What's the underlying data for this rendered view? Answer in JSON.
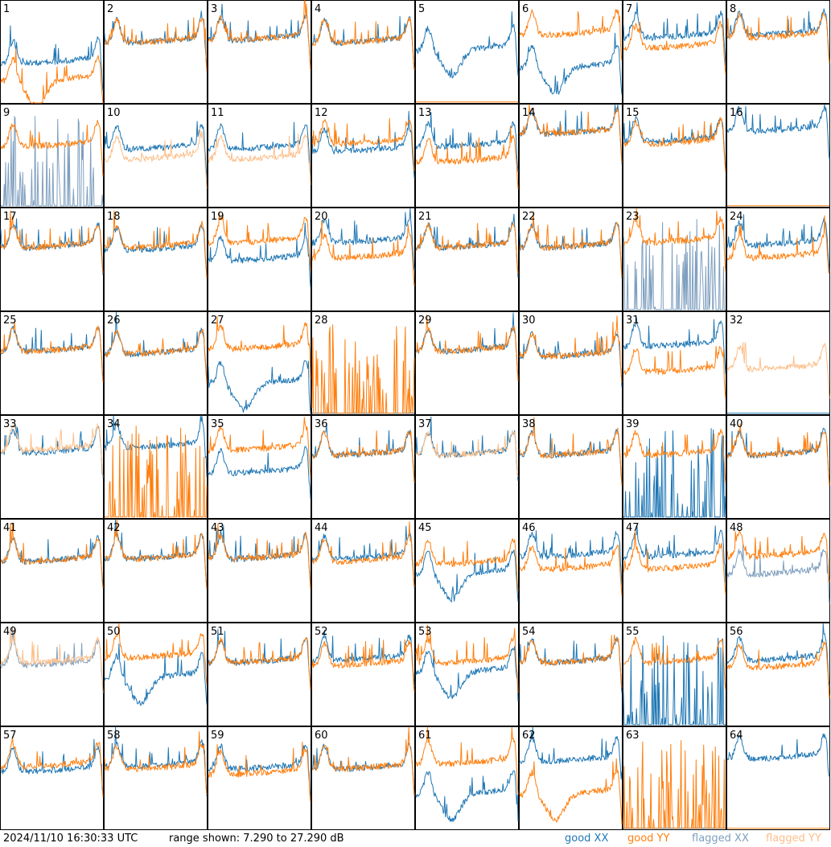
{
  "panel_labels": [
    "1",
    "2",
    "3",
    "4",
    "5",
    "6",
    "7",
    "8",
    "9",
    "10",
    "11",
    "12",
    "13",
    "14",
    "15",
    "16",
    "17",
    "18",
    "19",
    "20",
    "21",
    "22",
    "23",
    "24",
    "25",
    "26",
    "27",
    "28",
    "29",
    "30",
    "31",
    "32",
    "33",
    "34",
    "35",
    "36",
    "37",
    "38",
    "39",
    "40",
    "41",
    "42",
    "43",
    "44",
    "45",
    "46",
    "47",
    "48",
    "49",
    "50",
    "51",
    "52",
    "53",
    "54",
    "55",
    "56",
    "57",
    "58",
    "59",
    "60",
    "61",
    "62",
    "63",
    "64"
  ],
  "footer": {
    "timestamp": "2024/11/10 16:30:33 UTC",
    "range": "range shown: 7.290 to 27.290 dB"
  },
  "legend": [
    {
      "label": "good XX",
      "color": "#1f77b4"
    },
    {
      "label": "good YY",
      "color": "#ff7f0e"
    },
    {
      "label": "flagged XX",
      "color": "#7f9fbf"
    },
    {
      "label": "flagged YY",
      "color": "#fcbf8a"
    }
  ],
  "colors": {
    "good_xx": "#1f77b4",
    "good_yy": "#ff7f0e",
    "flagged_xx": "#7f9fbf",
    "flagged_yy": "#fcbf8a"
  },
  "chart_data": {
    "type": "line",
    "layout": "8x8 small multiples",
    "ylim": [
      7.29,
      27.29
    ],
    "yunit": "dB",
    "series_names": [
      "good XX",
      "good YY",
      "flagged XX",
      "flagged YY"
    ],
    "panels": [
      {
        "id": 1,
        "xx": {
          "status": "good",
          "level": 15.0,
          "shape": "normal"
        },
        "yy": {
          "status": "good",
          "level": 11.5,
          "shape": "dip"
        }
      },
      {
        "id": 2,
        "xx": {
          "status": "good",
          "level": 19.0,
          "shape": "normal"
        },
        "yy": {
          "status": "good",
          "level": 19.0,
          "shape": "normal"
        }
      },
      {
        "id": 3,
        "xx": {
          "status": "good",
          "level": 19.5,
          "shape": "normal"
        },
        "yy": {
          "status": "good",
          "level": 19.5,
          "shape": "normal"
        }
      },
      {
        "id": 4,
        "xx": {
          "status": "good",
          "level": 19.0,
          "shape": "normal"
        },
        "yy": {
          "status": "good",
          "level": 19.0,
          "shape": "normal"
        }
      },
      {
        "id": 5,
        "xx": {
          "status": "good",
          "level": 17.5,
          "shape": "dip"
        },
        "yy": {
          "status": "good",
          "level": 7.5,
          "shape": "flat"
        }
      },
      {
        "id": 6,
        "xx": {
          "status": "good",
          "level": 14.0,
          "shape": "dip"
        },
        "yy": {
          "status": "good",
          "level": 20.5,
          "shape": "normal"
        }
      },
      {
        "id": 7,
        "xx": {
          "status": "good",
          "level": 20.0,
          "shape": "normal"
        },
        "yy": {
          "status": "good",
          "level": 18.0,
          "shape": "normal"
        }
      },
      {
        "id": 8,
        "xx": {
          "status": "good",
          "level": 20.5,
          "shape": "normal"
        },
        "yy": {
          "status": "good",
          "level": 20.0,
          "shape": "normal"
        }
      },
      {
        "id": 9,
        "xx": {
          "status": "flagged",
          "level": 7.5,
          "shape": "spiky"
        },
        "yy": {
          "status": "good",
          "level": 19.0,
          "shape": "normal"
        }
      },
      {
        "id": 10,
        "xx": {
          "status": "good",
          "level": 18.5,
          "shape": "normal"
        },
        "yy": {
          "status": "flagged",
          "level": 16.5,
          "shape": "normal"
        }
      },
      {
        "id": 11,
        "xx": {
          "status": "good",
          "level": 18.5,
          "shape": "normal"
        },
        "yy": {
          "status": "flagged",
          "level": 16.5,
          "shape": "normal"
        }
      },
      {
        "id": 12,
        "xx": {
          "status": "good",
          "level": 18.0,
          "shape": "normal"
        },
        "yy": {
          "status": "good",
          "level": 19.5,
          "shape": "normal"
        }
      },
      {
        "id": 13,
        "xx": {
          "status": "good",
          "level": 19.0,
          "shape": "normal"
        },
        "yy": {
          "status": "good",
          "level": 16.0,
          "shape": "normal"
        }
      },
      {
        "id": 14,
        "xx": {
          "status": "good",
          "level": 21.5,
          "shape": "normal"
        },
        "yy": {
          "status": "good",
          "level": 21.5,
          "shape": "normal"
        }
      },
      {
        "id": 15,
        "xx": {
          "status": "good",
          "level": 20.0,
          "shape": "normal"
        },
        "yy": {
          "status": "good",
          "level": 19.5,
          "shape": "normal"
        }
      },
      {
        "id": 16,
        "xx": {
          "status": "good",
          "level": 22.0,
          "shape": "normal"
        },
        "yy": {
          "status": "good",
          "level": 7.5,
          "shape": "flat"
        }
      },
      {
        "id": 17,
        "xx": {
          "status": "good",
          "level": 19.5,
          "shape": "normal"
        },
        "yy": {
          "status": "good",
          "level": 19.5,
          "shape": "normal"
        }
      },
      {
        "id": 18,
        "xx": {
          "status": "good",
          "level": 19.0,
          "shape": "normal"
        },
        "yy": {
          "status": "good",
          "level": 19.5,
          "shape": "normal"
        }
      },
      {
        "id": 19,
        "xx": {
          "status": "good",
          "level": 17.0,
          "shape": "normal"
        },
        "yy": {
          "status": "good",
          "level": 20.5,
          "shape": "normal"
        }
      },
      {
        "id": 20,
        "xx": {
          "status": "good",
          "level": 20.5,
          "shape": "normal"
        },
        "yy": {
          "status": "good",
          "level": 17.5,
          "shape": "normal"
        }
      },
      {
        "id": 21,
        "xx": {
          "status": "good",
          "level": 19.5,
          "shape": "normal"
        },
        "yy": {
          "status": "good",
          "level": 19.5,
          "shape": "normal"
        }
      },
      {
        "id": 22,
        "xx": {
          "status": "good",
          "level": 19.5,
          "shape": "normal"
        },
        "yy": {
          "status": "good",
          "level": 19.5,
          "shape": "normal"
        }
      },
      {
        "id": 23,
        "xx": {
          "status": "flagged",
          "level": 14.0,
          "shape": "spiky"
        },
        "yy": {
          "status": "good",
          "level": 20.5,
          "shape": "normal"
        }
      },
      {
        "id": 24,
        "xx": {
          "status": "good",
          "level": 20.0,
          "shape": "normal"
        },
        "yy": {
          "status": "good",
          "level": 17.5,
          "shape": "normal"
        }
      },
      {
        "id": 25,
        "xx": {
          "status": "good",
          "level": 19.5,
          "shape": "normal"
        },
        "yy": {
          "status": "good",
          "level": 19.5,
          "shape": "normal"
        }
      },
      {
        "id": 26,
        "xx": {
          "status": "good",
          "level": 19.0,
          "shape": "normal"
        },
        "yy": {
          "status": "good",
          "level": 19.0,
          "shape": "normal"
        }
      },
      {
        "id": 27,
        "xx": {
          "status": "good",
          "level": 13.0,
          "shape": "dip"
        },
        "yy": {
          "status": "good",
          "level": 20.0,
          "shape": "normal"
        }
      },
      {
        "id": 28,
        "xx": {
          "status": "good",
          "level": 7.5,
          "shape": "flat"
        },
        "yy": {
          "status": "good",
          "level": 7.5,
          "shape": "spiky"
        }
      },
      {
        "id": 29,
        "xx": {
          "status": "good",
          "level": 19.5,
          "shape": "normal"
        },
        "yy": {
          "status": "good",
          "level": 19.5,
          "shape": "normal"
        }
      },
      {
        "id": 30,
        "xx": {
          "status": "good",
          "level": 18.5,
          "shape": "normal"
        },
        "yy": {
          "status": "good",
          "level": 18.5,
          "shape": "normal"
        }
      },
      {
        "id": 31,
        "xx": {
          "status": "good",
          "level": 20.5,
          "shape": "normal"
        },
        "yy": {
          "status": "good",
          "level": 15.5,
          "shape": "normal"
        }
      },
      {
        "id": 32,
        "xx": {
          "status": "good",
          "level": 7.5,
          "shape": "flat"
        },
        "yy": {
          "status": "flagged",
          "level": 16.0,
          "shape": "normal"
        }
      },
      {
        "id": 33,
        "xx": {
          "status": "good",
          "level": 20.0,
          "shape": "normal"
        },
        "yy": {
          "status": "flagged",
          "level": 20.5,
          "shape": "normal"
        }
      },
      {
        "id": 34,
        "xx": {
          "status": "good",
          "level": 21.0,
          "shape": "normal"
        },
        "yy": {
          "status": "good",
          "level": 7.5,
          "shape": "spiky"
        }
      },
      {
        "id": 35,
        "xx": {
          "status": "good",
          "level": 16.0,
          "shape": "normal"
        },
        "yy": {
          "status": "good",
          "level": 20.5,
          "shape": "normal"
        }
      },
      {
        "id": 36,
        "xx": {
          "status": "good",
          "level": 19.5,
          "shape": "normal"
        },
        "yy": {
          "status": "good",
          "level": 19.5,
          "shape": "normal"
        }
      },
      {
        "id": 37,
        "xx": {
          "status": "good",
          "level": 19.5,
          "shape": "normal"
        },
        "yy": {
          "status": "flagged",
          "level": 19.5,
          "shape": "normal"
        }
      },
      {
        "id": 38,
        "xx": {
          "status": "good",
          "level": 19.5,
          "shape": "normal"
        },
        "yy": {
          "status": "good",
          "level": 19.5,
          "shape": "normal"
        }
      },
      {
        "id": 39,
        "xx": {
          "status": "good",
          "level": 7.5,
          "shape": "spiky"
        },
        "yy": {
          "status": "good",
          "level": 19.5,
          "shape": "normal"
        }
      },
      {
        "id": 40,
        "xx": {
          "status": "good",
          "level": 19.5,
          "shape": "normal"
        },
        "yy": {
          "status": "good",
          "level": 19.5,
          "shape": "normal"
        }
      },
      {
        "id": 41,
        "xx": {
          "status": "good",
          "level": 19.0,
          "shape": "normal"
        },
        "yy": {
          "status": "good",
          "level": 19.0,
          "shape": "normal"
        }
      },
      {
        "id": 42,
        "xx": {
          "status": "good",
          "level": 19.5,
          "shape": "normal"
        },
        "yy": {
          "status": "good",
          "level": 19.5,
          "shape": "normal"
        }
      },
      {
        "id": 43,
        "xx": {
          "status": "good",
          "level": 19.5,
          "shape": "normal"
        },
        "yy": {
          "status": "good",
          "level": 19.5,
          "shape": "normal"
        }
      },
      {
        "id": 44,
        "xx": {
          "status": "good",
          "level": 19.5,
          "shape": "normal"
        },
        "yy": {
          "status": "good",
          "level": 19.0,
          "shape": "normal"
        }
      },
      {
        "id": 45,
        "xx": {
          "status": "good",
          "level": 16.5,
          "shape": "dip"
        },
        "yy": {
          "status": "good",
          "level": 18.5,
          "shape": "normal"
        }
      },
      {
        "id": 46,
        "xx": {
          "status": "good",
          "level": 20.0,
          "shape": "normal"
        },
        "yy": {
          "status": "good",
          "level": 17.5,
          "shape": "normal"
        }
      },
      {
        "id": 47,
        "xx": {
          "status": "good",
          "level": 20.0,
          "shape": "normal"
        },
        "yy": {
          "status": "good",
          "level": 17.5,
          "shape": "normal"
        }
      },
      {
        "id": 48,
        "xx": {
          "status": "flagged",
          "level": 16.5,
          "shape": "normal"
        },
        "yy": {
          "status": "good",
          "level": 20.0,
          "shape": "normal"
        }
      },
      {
        "id": 49,
        "xx": {
          "status": "flagged",
          "level": 19.0,
          "shape": "normal"
        },
        "yy": {
          "status": "flagged",
          "level": 19.5,
          "shape": "normal"
        }
      },
      {
        "id": 50,
        "xx": {
          "status": "good",
          "level": 16.5,
          "shape": "dip"
        },
        "yy": {
          "status": "good",
          "level": 20.5,
          "shape": "normal"
        }
      },
      {
        "id": 51,
        "xx": {
          "status": "good",
          "level": 19.5,
          "shape": "normal"
        },
        "yy": {
          "status": "good",
          "level": 19.5,
          "shape": "normal"
        }
      },
      {
        "id": 52,
        "xx": {
          "status": "good",
          "level": 20.0,
          "shape": "normal"
        },
        "yy": {
          "status": "good",
          "level": 19.0,
          "shape": "normal"
        }
      },
      {
        "id": 53,
        "xx": {
          "status": "good",
          "level": 17.5,
          "shape": "dip"
        },
        "yy": {
          "status": "good",
          "level": 19.5,
          "shape": "normal"
        }
      },
      {
        "id": 54,
        "xx": {
          "status": "good",
          "level": 19.5,
          "shape": "normal"
        },
        "yy": {
          "status": "good",
          "level": 19.5,
          "shape": "normal"
        }
      },
      {
        "id": 55,
        "xx": {
          "status": "good",
          "level": 7.5,
          "shape": "spiky"
        },
        "yy": {
          "status": "good",
          "level": 19.5,
          "shape": "normal"
        }
      },
      {
        "id": 56,
        "xx": {
          "status": "good",
          "level": 20.0,
          "shape": "normal"
        },
        "yy": {
          "status": "good",
          "level": 18.5,
          "shape": "normal"
        }
      },
      {
        "id": 57,
        "xx": {
          "status": "good",
          "level": 18.5,
          "shape": "normal"
        },
        "yy": {
          "status": "good",
          "level": 19.5,
          "shape": "normal"
        }
      },
      {
        "id": 58,
        "xx": {
          "status": "good",
          "level": 19.5,
          "shape": "normal"
        },
        "yy": {
          "status": "good",
          "level": 19.0,
          "shape": "normal"
        }
      },
      {
        "id": 59,
        "xx": {
          "status": "good",
          "level": 19.0,
          "shape": "normal"
        },
        "yy": {
          "status": "good",
          "level": 18.0,
          "shape": "normal"
        }
      },
      {
        "id": 60,
        "xx": {
          "status": "good",
          "level": 19.0,
          "shape": "normal"
        },
        "yy": {
          "status": "good",
          "level": 19.0,
          "shape": "normal"
        }
      },
      {
        "id": 61,
        "xx": {
          "status": "good",
          "level": 14.0,
          "shape": "dip"
        },
        "yy": {
          "status": "good",
          "level": 20.0,
          "shape": "normal"
        }
      },
      {
        "id": 62,
        "xx": {
          "status": "good",
          "level": 20.5,
          "shape": "normal"
        },
        "yy": {
          "status": "good",
          "level": 14.0,
          "shape": "dip"
        }
      },
      {
        "id": 63,
        "xx": {
          "status": "good",
          "level": 7.5,
          "shape": "flat"
        },
        "yy": {
          "status": "good",
          "level": 7.5,
          "shape": "spiky"
        }
      },
      {
        "id": 64,
        "xx": {
          "status": "good",
          "level": 21.0,
          "shape": "normal"
        },
        "yy": {
          "status": "good",
          "level": 7.5,
          "shape": "flat"
        }
      }
    ]
  }
}
